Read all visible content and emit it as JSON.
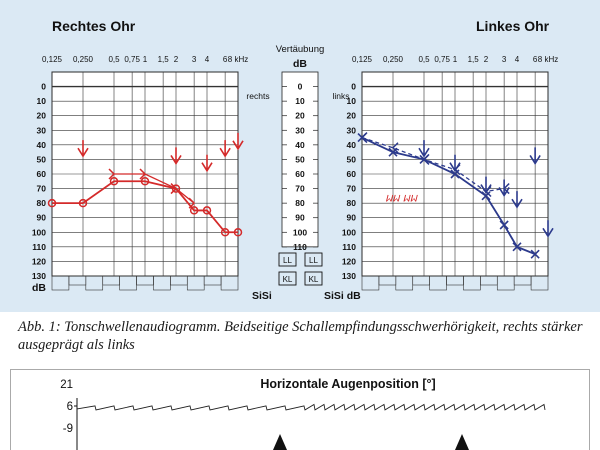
{
  "figure": {
    "caption": "Abb. 1: Tonschwellenaudiogramm. Beidseitige Schallempfindungsschwerhörigkeit, rechts stärker ausgeprägt als links"
  },
  "colors": {
    "panel_bg": "#dbe9f4",
    "grid": "#333333",
    "right_ear": "#d42a2a",
    "left_ear": "#2c3a8c",
    "eye_trace": "#222222"
  },
  "audiogram": {
    "right_panel_title": "Rechtes Ohr",
    "left_panel_title": "Linkes Ohr",
    "freq_labels": [
      "0,125",
      "0,250",
      "0,5",
      "0,75",
      "1",
      "1,5",
      "2",
      "3",
      "4",
      "6",
      "8 kHz"
    ],
    "db_labels": [
      "0",
      "10",
      "20",
      "30",
      "40",
      "50",
      "60",
      "70",
      "80",
      "90",
      "100",
      "110",
      "120",
      "130"
    ],
    "db_unit": "dB",
    "mask_header": "Vertäubung",
    "mask_unit": "dB",
    "mask_right": "rechts",
    "mask_left": "links",
    "mask_labels": [
      "0",
      "10",
      "20",
      "30",
      "40",
      "50",
      "60",
      "70",
      "80",
      "90",
      "100",
      "110"
    ],
    "boxes": [
      "LL",
      "LL",
      "KL",
      "KL"
    ],
    "sisi_label": "SiSi",
    "sisi_db_label": "SiSi dB"
  },
  "chart_data": [
    {
      "type": "line",
      "title": "Rechtes Ohr",
      "xlabel": "",
      "ylabel": "dB",
      "x_scale": "log",
      "x": [
        0.125,
        0.25,
        0.5,
        1,
        2,
        3,
        4,
        6,
        8
      ],
      "ylim": [
        -10,
        130
      ],
      "y_inverted": true,
      "series": [
        {
          "marker": "circle",
          "style": "solid",
          "color": "#d42a2a",
          "values": [
            80,
            80,
            65,
            65,
            70,
            85,
            85,
            100,
            100
          ]
        },
        {
          "marker": "bracket",
          "style": "solid",
          "color": "#d42a2a",
          "values": [
            null,
            null,
            60,
            60,
            70,
            80,
            null,
            null,
            null
          ]
        },
        {
          "marker": "arrow-down",
          "color": "#d42a2a",
          "values": [
            null,
            45,
            null,
            null,
            50,
            null,
            55,
            45,
            40
          ]
        }
      ],
      "annotations": [],
      "grid": true
    },
    {
      "type": "line",
      "title": "Linkes Ohr",
      "xlabel": "",
      "ylabel": "dB",
      "x_scale": "log",
      "x": [
        0.125,
        0.25,
        0.5,
        1,
        2,
        3,
        4,
        6,
        8
      ],
      "ylim": [
        -10,
        130
      ],
      "y_inverted": true,
      "series": [
        {
          "marker": "cross",
          "style": "solid",
          "color": "#2c3a8c",
          "values": [
            35,
            45,
            50,
            60,
            75,
            95,
            110,
            115,
            null
          ]
        },
        {
          "marker": "bracket",
          "style": "dashed",
          "color": "#2c3a8c",
          "values": [
            35,
            42,
            50,
            57,
            72,
            70,
            null,
            null,
            null
          ]
        },
        {
          "marker": "arrow-down",
          "color": "#2c3a8c",
          "values": [
            null,
            null,
            45,
            55,
            70,
            72,
            80,
            50,
            100
          ]
        }
      ],
      "annotations": [
        {
          "text": "ᥕᥕ ᥕᥕ",
          "x": 0.21,
          "y": 76,
          "color": "#d42a2a"
        }
      ],
      "grid": true
    },
    {
      "type": "line",
      "title": "Horizontale Augenposition [°]",
      "xlabel": "",
      "ylabel": "",
      "yticks": [
        21,
        6,
        -9
      ],
      "ylim": [
        -9,
        21
      ],
      "series": [
        {
          "name": "",
          "pattern": "nystagmus-sawtooth",
          "baseline": 4,
          "color": "#222222"
        }
      ],
      "markers": [
        "arrow-up",
        "arrow-up"
      ],
      "grid": false
    }
  ],
  "eye_chart": {
    "title": "Horizontale Augenposition [°]",
    "y_ticks": [
      "21",
      "6",
      "-9"
    ]
  }
}
